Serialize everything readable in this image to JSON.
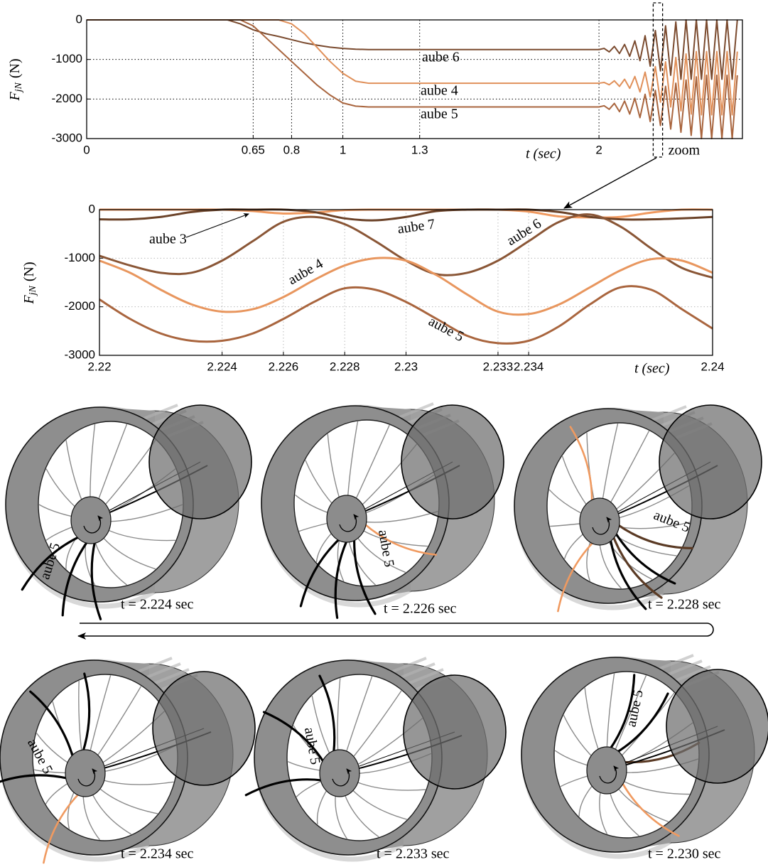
{
  "chart_data": [
    {
      "type": "line",
      "xlabel": "t (sec)",
      "ylabel": {
        "main": "F",
        "sub": "jN",
        "unit": "(N)"
      },
      "x": [
        0,
        0.55,
        0.6,
        0.65,
        0.7,
        0.75,
        0.8,
        0.85,
        0.9,
        0.95,
        1,
        1.05,
        1.1,
        1.5,
        1.9,
        2,
        2.02,
        2.04,
        2.06,
        2.08,
        2.1,
        2.12,
        2.14,
        2.16,
        2.18,
        2.2,
        2.22,
        2.24,
        2.26,
        2.28,
        2.3,
        2.32,
        2.34,
        2.36,
        2.38,
        2.4,
        2.42,
        2.44,
        2.46,
        2.48,
        2.5,
        2.52,
        2.54
      ],
      "series": [
        {
          "name": "aube 6",
          "color": "#7a4a2e",
          "values": [
            0,
            0,
            -100,
            -250,
            -350,
            -420,
            -500,
            -580,
            -640,
            -690,
            -720,
            -740,
            -750,
            -750,
            -750,
            -750,
            -720,
            -810,
            -670,
            -850,
            -620,
            -920,
            -530,
            -1030,
            -400,
            -1170,
            -270,
            -1290,
            -150,
            -1400,
            -50,
            -1500,
            0,
            -1500,
            0,
            -1500,
            0,
            -1500,
            0,
            -1500,
            0,
            -1500,
            0
          ]
        },
        {
          "name": "aube 4",
          "color": "#e0905a",
          "values": [
            0,
            0,
            0,
            0,
            0,
            0,
            -100,
            -350,
            -700,
            -1050,
            -1350,
            -1550,
            -1600,
            -1600,
            -1600,
            -1600,
            -1580,
            -1640,
            -1540,
            -1680,
            -1500,
            -1730,
            -1430,
            -1820,
            -1320,
            -1950,
            -1180,
            -2080,
            -1060,
            -2200,
            -950,
            -2300,
            -860,
            -2380,
            -800,
            -2400,
            -800,
            -2400,
            -800,
            -2400,
            -800,
            -2400,
            -800
          ]
        },
        {
          "name": "aube 5",
          "color": "#a9653e",
          "values": [
            0,
            0,
            0,
            -150,
            -450,
            -750,
            -1050,
            -1350,
            -1650,
            -1900,
            -2100,
            -2180,
            -2200,
            -2200,
            -2200,
            -2200,
            -2170,
            -2260,
            -2110,
            -2320,
            -2050,
            -2380,
            -1980,
            -2470,
            -1880,
            -2570,
            -1780,
            -2670,
            -1680,
            -2760,
            -1600,
            -2840,
            -1520,
            -2920,
            -1440,
            -3000,
            -1400,
            -3000,
            -1400,
            -3000,
            -1400,
            -3000,
            -1400
          ]
        }
      ],
      "xlim": [
        0,
        2.56
      ],
      "ylim": [
        -3000,
        0
      ],
      "xticks": [
        0,
        0.65,
        0.8,
        1,
        1.3,
        2
      ],
      "yticks": [
        -3000,
        -2000,
        -1000,
        0
      ],
      "grid": true,
      "annotations": [
        "zoom"
      ]
    },
    {
      "type": "line",
      "xlabel": "t (sec)",
      "ylabel": {
        "main": "F",
        "sub": "jN",
        "unit": "(N)"
      },
      "x": [
        2.22,
        2.221,
        2.222,
        2.223,
        2.224,
        2.225,
        2.226,
        2.227,
        2.228,
        2.229,
        2.23,
        2.231,
        2.232,
        2.233,
        2.234,
        2.235,
        2.236,
        2.237,
        2.238,
        2.239,
        2.24
      ],
      "series": [
        {
          "name": "aube 3",
          "color": "#f09a60",
          "values": [
            0,
            0,
            0,
            0,
            0,
            -30,
            -80,
            -60,
            -10,
            0,
            0,
            0,
            0,
            0,
            -40,
            -140,
            -160,
            -150,
            -60,
            0,
            0
          ]
        },
        {
          "name": "aube 7",
          "color": "#6b4228",
          "values": [
            -200,
            -200,
            -150,
            -50,
            0,
            0,
            0,
            -50,
            -180,
            -220,
            -150,
            -30,
            0,
            0,
            0,
            -50,
            -150,
            -200,
            -200,
            -180,
            -150
          ]
        },
        {
          "name": "aube 6",
          "color": "#8a5636",
          "values": [
            -950,
            -1150,
            -1300,
            -1300,
            -1050,
            -650,
            -250,
            -150,
            -300,
            -650,
            -1050,
            -1330,
            -1300,
            -1050,
            -650,
            -250,
            -100,
            -350,
            -800,
            -1200,
            -1400
          ]
        },
        {
          "name": "aube 4",
          "color": "#e8965e",
          "values": [
            -1050,
            -1300,
            -1650,
            -1950,
            -2100,
            -2050,
            -1800,
            -1450,
            -1150,
            -1000,
            -1050,
            -1350,
            -1750,
            -2100,
            -2150,
            -1950,
            -1600,
            -1250,
            -1020,
            -1050,
            -1300
          ]
        },
        {
          "name": "aube 5",
          "color": "#a9653e",
          "values": [
            -1850,
            -2250,
            -2550,
            -2700,
            -2700,
            -2550,
            -2250,
            -1900,
            -1620,
            -1650,
            -1900,
            -2250,
            -2600,
            -2750,
            -2700,
            -2400,
            -1950,
            -1600,
            -1650,
            -2050,
            -2450
          ]
        }
      ],
      "xlim": [
        2.22,
        2.24
      ],
      "ylim": [
        -3000,
        0
      ],
      "xticks": [
        2.22,
        2.224,
        2.226,
        2.228,
        2.23,
        2.233,
        2.234,
        2.24
      ],
      "yticks": [
        -3000,
        -2000,
        -1000,
        0
      ],
      "grid": true
    }
  ],
  "snapshots": [
    {
      "caption": "t = 2.224 sec",
      "label": "aube 5"
    },
    {
      "caption": "t = 2.226 sec",
      "label": "aube 5"
    },
    {
      "caption": "t = 2.228 sec",
      "label": "aube 5"
    },
    {
      "caption": "t = 2.234 sec",
      "label": "aube 5"
    },
    {
      "caption": "t = 2.233 sec",
      "label": "aube 5"
    },
    {
      "caption": "t = 2.230 sec",
      "label": "aube 5"
    }
  ]
}
